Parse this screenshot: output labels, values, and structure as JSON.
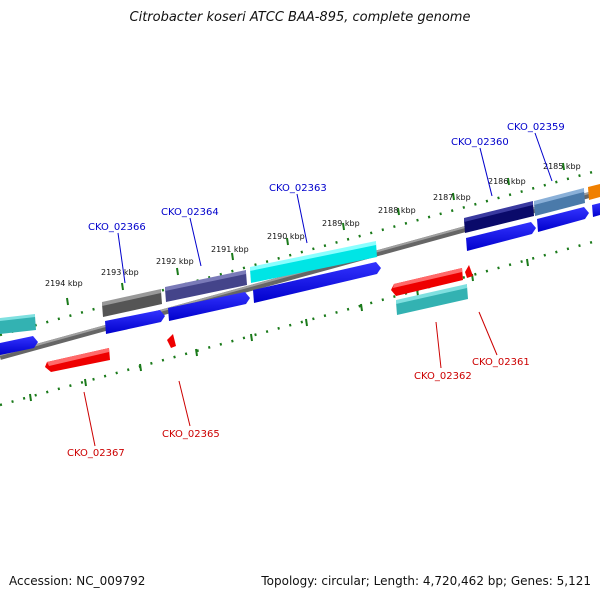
{
  "title": "Citrobacter koseri ATCC BAA-895, complete genome",
  "footer": {
    "accession": "Accession: NC_009792",
    "topology": "Topology: circular; Length: 4,720,462 bp; Genes: 5,121"
  },
  "scale_labels": [
    "2194 kbp",
    "2193 kbp",
    "2192 kbp",
    "2191 kbp",
    "2190 kbp",
    "2189 kbp",
    "2188 kbp",
    "2187 kbp",
    "2186 kbp",
    "2185 kbp"
  ],
  "gene_labels": {
    "forward": [
      "CKO_02366",
      "CKO_02364",
      "CKO_02363",
      "CKO_02360",
      "CKO_02359"
    ],
    "reverse": [
      "CKO_02367",
      "CKO_02365",
      "CKO_02362",
      "CKO_02361"
    ]
  },
  "colors": {
    "forward_label": "#0000cc",
    "reverse_label": "#cc0000",
    "tick": "#1a7a1a",
    "backbone": "#888888",
    "cds_forward": "#0000ee",
    "cds_reverse": "#ee0000"
  }
}
